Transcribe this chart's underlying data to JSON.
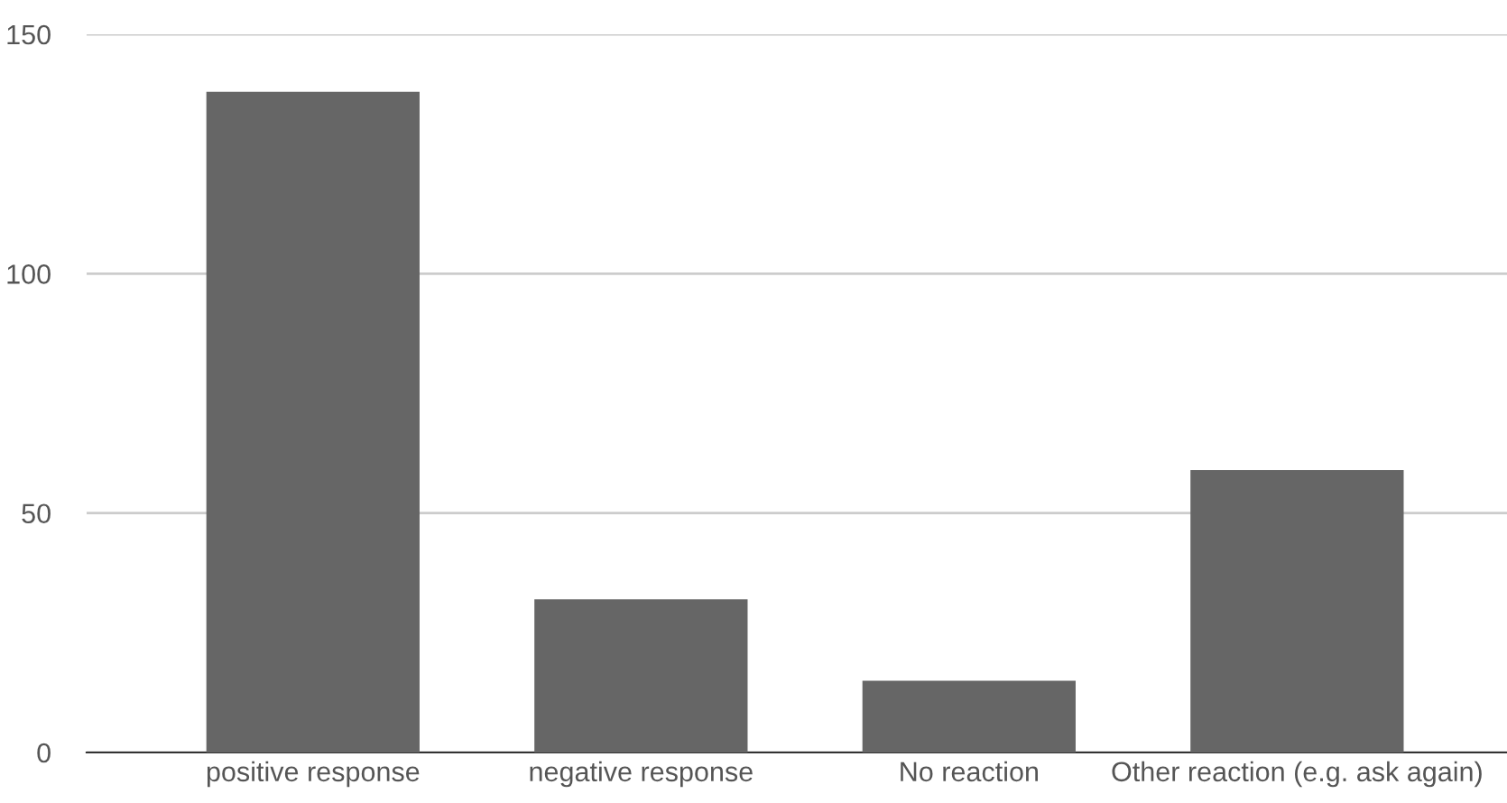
{
  "chart_data": {
    "type": "bar",
    "categories": [
      "positive response",
      "negative response",
      "No reaction",
      "Other reaction (e.g. ask again)"
    ],
    "values": [
      138,
      32,
      15,
      59
    ],
    "color": "#666666",
    "ylim": [
      0,
      150
    ],
    "yticks": [
      0,
      50,
      100,
      150
    ],
    "grid": "y"
  }
}
